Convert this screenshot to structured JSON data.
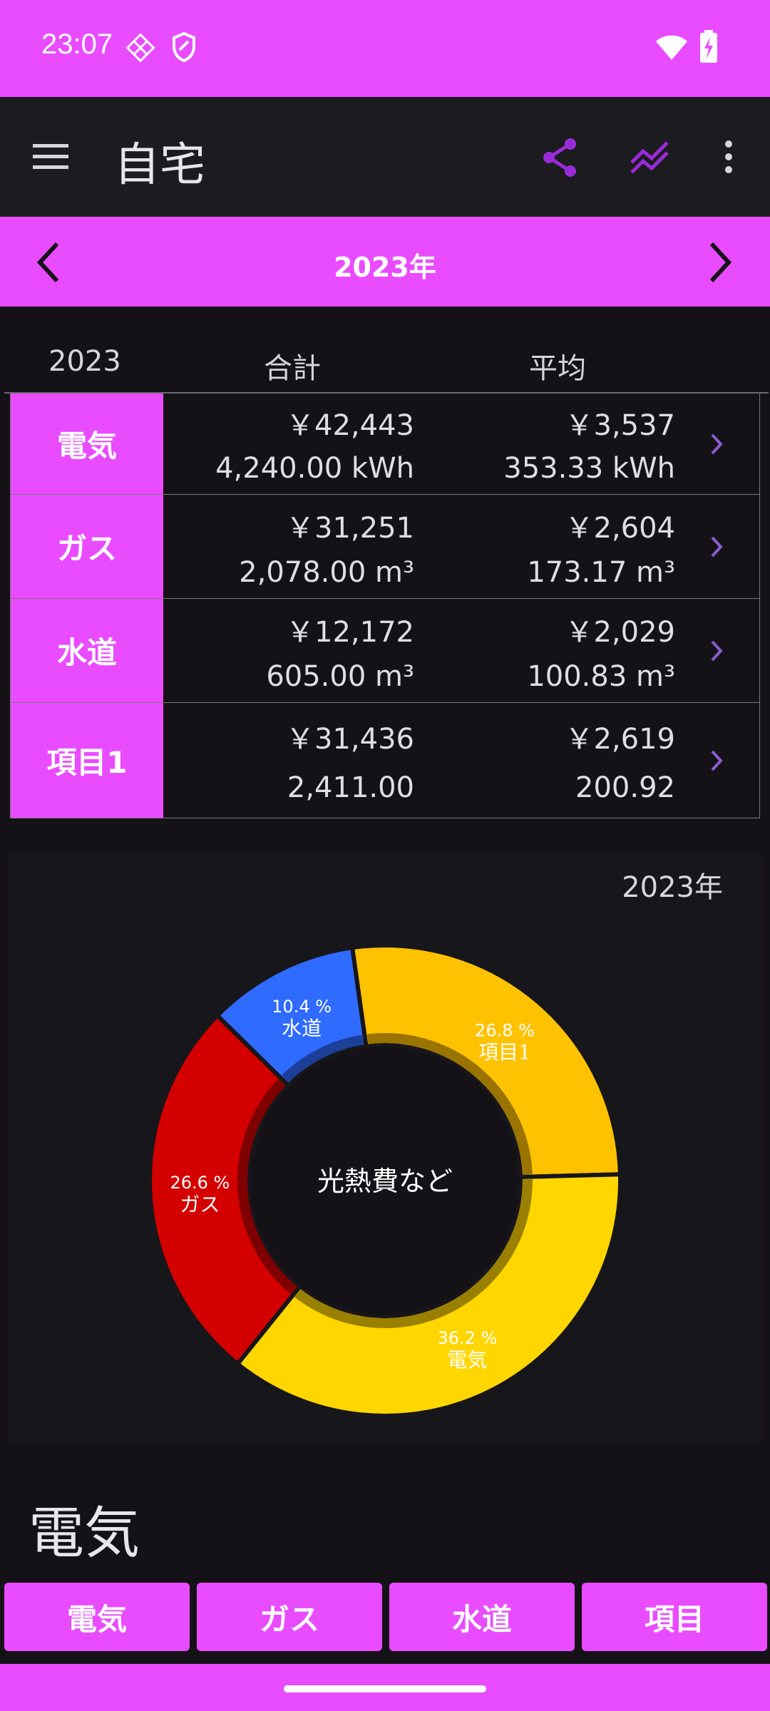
{
  "status": {
    "time": "23:07"
  },
  "app_bar": {
    "title": "自宅"
  },
  "year_bar": {
    "title": "2023年"
  },
  "table": {
    "headers": [
      "2023",
      "合計",
      "平均"
    ],
    "rows": [
      {
        "label": "電気",
        "total_yen": "￥42,443",
        "total_amount": "4,240.00 kWh",
        "avg_yen": "￥3,537",
        "avg_amount": "353.33 kWh"
      },
      {
        "label": "ガス",
        "total_yen": "￥31,251",
        "total_amount": "2,078.00 m³",
        "avg_yen": "￥2,604",
        "avg_amount": "173.17 m³"
      },
      {
        "label": "水道",
        "total_yen": "￥12,172",
        "total_amount": "605.00 m³",
        "avg_yen": "￥2,029",
        "avg_amount": "100.83 m³"
      },
      {
        "label": "項目1",
        "total_yen": "￥31,436",
        "total_amount": "2,411.00",
        "avg_yen": "￥2,619",
        "avg_amount": "200.92"
      }
    ]
  },
  "chart_data": {
    "type": "pie",
    "title": "2023年",
    "center_label": "光熱費など",
    "slices": [
      {
        "name": "項目1",
        "percent": 26.8,
        "pct_label": "26.8 %",
        "color": "#ffc200"
      },
      {
        "name": "電気",
        "percent": 36.2,
        "pct_label": "36.2 %",
        "color": "#ffd600"
      },
      {
        "name": "ガス",
        "percent": 26.6,
        "pct_label": "26.6 %",
        "color": "#d40000"
      },
      {
        "name": "水道",
        "percent": 10.4,
        "pct_label": "10.4 %",
        "color": "#2f6bff"
      }
    ]
  },
  "section": {
    "title": "電気"
  },
  "tabs": [
    "電気",
    "ガス",
    "水道",
    "項目"
  ],
  "colors": {
    "accent": "#e94cff",
    "background": "#141217",
    "icon_purple": "#9a2bd8"
  },
  "icons": {
    "menu": "menu-icon",
    "share": "share-icon",
    "chart": "chart-line-icon",
    "more": "more-vert-icon",
    "prev": "chevron-left-icon",
    "next": "chevron-right-icon"
  }
}
